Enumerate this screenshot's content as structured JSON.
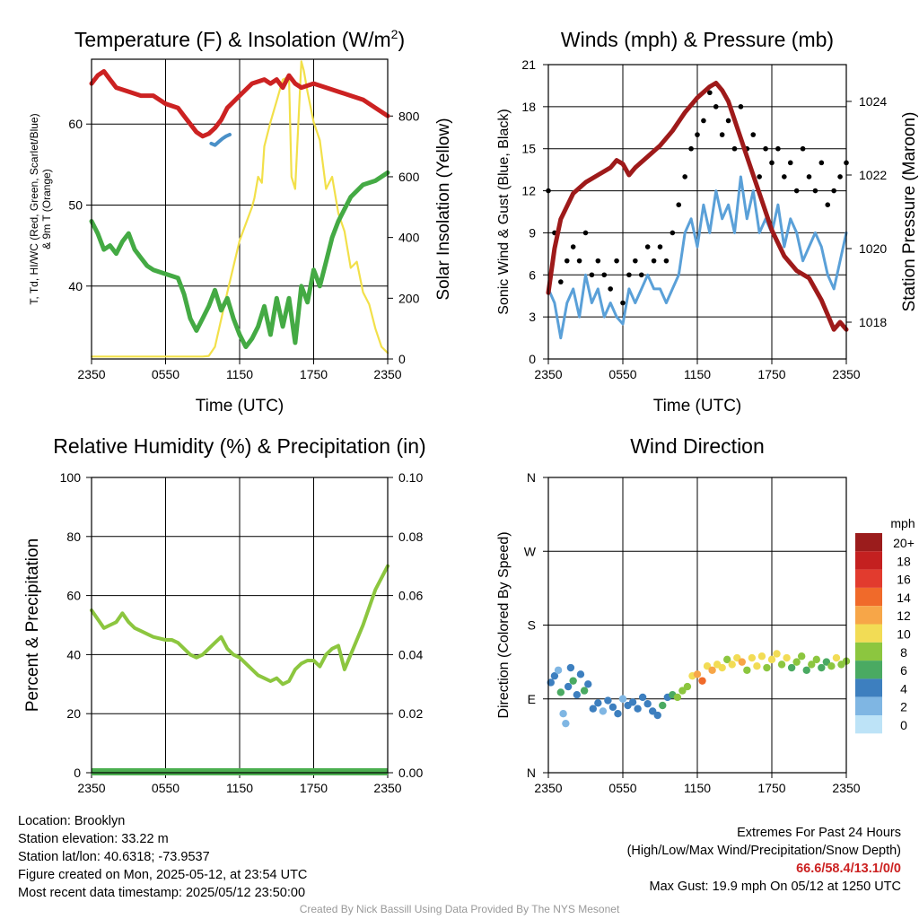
{
  "colors": {
    "temperature": "#cc2222",
    "dewpoint": "#44aa44",
    "windchill": "#4a90c8",
    "insolation": "#f2e04a",
    "wind": "#5aa0d8",
    "gust": "#000000",
    "pressure": "#9e1a1a",
    "rh": "#8cc63f",
    "precip": "#4caf50"
  },
  "footer": {
    "location": "Location: Brooklyn",
    "elevation": "Station elevation: 33.22 m",
    "latlon": "Station lat/lon: 40.6318; -73.9537",
    "created": "Figure created on Mon, 2025-05-12, at 23:54 UTC",
    "recent": "Most recent data timestamp: 2025/05/12 23:50:00",
    "extremes_title": "Extremes For Past 24 Hours",
    "extremes_sub": "(High/Low/Max Wind/Precipitation/Snow Depth)",
    "extremes_values": "66.6/58.4/13.1/0/0",
    "max_gust": "Max Gust: 19.9 mph On 05/12 at 1250 UTC",
    "credit": "Created By Nick Bassill Using Data Provided By The NYS Mesonet"
  },
  "chart_data": [
    {
      "type": "line",
      "title": "Temperature (F) & Insolation (W/m2)",
      "xlabel": "Time (UTC)",
      "ylabel": "2m T, Td, HI/WC (Red, Green, Scarlet/Blue) & 9m T (Orange)",
      "y2label": "Solar Insolation (Yellow)",
      "x_ticks": [
        "2350",
        "0550",
        "1150",
        "1750",
        "2350"
      ],
      "xlim": [
        0,
        24
      ],
      "ylim": [
        31,
        68
      ],
      "y_ticks": [
        40,
        50,
        60
      ],
      "y2lim": [
        0,
        987
      ],
      "y2_ticks": [
        0,
        200,
        400,
        600,
        800
      ],
      "series": [
        {
          "name": "2m T",
          "color_key": "temperature",
          "x": [
            0,
            0.5,
            1,
            1.5,
            2,
            3,
            4,
            5,
            6,
            7,
            7.5,
            8,
            8.5,
            9,
            9.5,
            10,
            10.5,
            11,
            12,
            13,
            14,
            14.5,
            15,
            15.5,
            16,
            16.5,
            17,
            18,
            19,
            20,
            21,
            22,
            23,
            24
          ],
          "values": [
            65.0,
            66.0,
            66.5,
            65.5,
            64.5,
            64.0,
            63.5,
            63.5,
            62.5,
            62.0,
            61.0,
            60.0,
            59.0,
            58.5,
            58.8,
            59.5,
            60.5,
            62.0,
            63.5,
            65.0,
            65.5,
            65.0,
            65.5,
            64.5,
            66.0,
            65.0,
            64.5,
            65.0,
            64.5,
            64.0,
            63.5,
            63.0,
            62.0,
            61.0
          ]
        },
        {
          "name": "2m Td",
          "color_key": "dewpoint",
          "x": [
            0,
            0.5,
            1,
            1.5,
            2,
            2.5,
            3,
            3.5,
            4,
            4.5,
            5,
            6,
            7,
            7.5,
            8,
            8.5,
            9,
            9.5,
            10,
            10.5,
            11,
            11.5,
            12,
            12.5,
            13,
            13.5,
            14,
            14.5,
            15,
            15.5,
            16,
            16.5,
            17,
            17.5,
            18,
            18.5,
            19,
            19.5,
            20,
            21,
            22,
            23,
            24
          ],
          "values": [
            48.0,
            46.5,
            44.5,
            45.0,
            44.0,
            45.5,
            46.5,
            44.5,
            43.5,
            42.5,
            42.0,
            41.5,
            41.0,
            39.0,
            36.0,
            34.5,
            36.0,
            37.5,
            39.5,
            37.0,
            38.5,
            36.0,
            34.0,
            32.5,
            33.5,
            35.0,
            37.5,
            34.0,
            38.5,
            35.0,
            38.5,
            33.0,
            40.0,
            38.0,
            42.0,
            40.0,
            43.0,
            46.0,
            48.0,
            51.0,
            52.5,
            53.0,
            54.0
          ]
        },
        {
          "name": "WC",
          "color_key": "windchill",
          "x": [
            9.7,
            10.0,
            10.3,
            10.6,
            10.9,
            11.2
          ],
          "values": [
            57.6,
            57.4,
            57.8,
            58.2,
            58.5,
            58.7
          ]
        }
      ],
      "insolation": {
        "x": [
          0,
          1,
          2,
          3,
          4,
          5,
          6,
          7,
          8,
          9,
          9.5,
          10,
          11,
          12,
          13,
          13.2,
          13.5,
          13.8,
          14,
          14.5,
          15,
          15.5,
          16,
          16.2,
          16.5,
          17,
          17.2,
          17.5,
          18,
          18.5,
          19,
          19.5,
          20,
          20.5,
          21,
          21.5,
          22,
          22.5,
          23,
          23.5,
          24
        ],
        "values": [
          8,
          8,
          8,
          8,
          8,
          8,
          8,
          8,
          8,
          8,
          10,
          40,
          220,
          390,
          500,
          530,
          600,
          580,
          700,
          780,
          850,
          920,
          930,
          600,
          560,
          980,
          950,
          880,
          780,
          720,
          560,
          600,
          480,
          420,
          300,
          320,
          220,
          180,
          100,
          40,
          20
        ]
      }
    },
    {
      "type": "line",
      "title": "Winds (mph) & Pressure (mb)",
      "xlabel": "Time (UTC)",
      "ylabel": "Sonic Wind & Gust (Blue, Black)",
      "y2label": "Station Pressure (Maroon)",
      "x_ticks": [
        "2350",
        "0550",
        "1150",
        "1750",
        "2350"
      ],
      "xlim": [
        0,
        24
      ],
      "ylim": [
        0,
        21
      ],
      "y_ticks": [
        0,
        3,
        6,
        9,
        12,
        15,
        18,
        21
      ],
      "y2lim": [
        1017.0,
        1025.0
      ],
      "y2_ticks": [
        1018,
        1020,
        1022,
        1024
      ],
      "wind": {
        "x": [
          0,
          0.5,
          1,
          1.5,
          2,
          2.5,
          3,
          3.5,
          4,
          4.5,
          5,
          5.5,
          6,
          6.5,
          7,
          7.5,
          8,
          8.5,
          9,
          9.5,
          10,
          10.5,
          11,
          11.5,
          12,
          12.5,
          13,
          13.5,
          14,
          14.5,
          15,
          15.5,
          16,
          16.5,
          17,
          17.5,
          18,
          18.5,
          19,
          19.5,
          20,
          20.5,
          21,
          21.5,
          22,
          22.5,
          23,
          23.5,
          24
        ],
        "values": [
          5,
          4,
          1.5,
          4,
          5,
          3,
          6,
          4,
          5,
          3,
          4,
          3,
          2.5,
          5,
          4,
          5,
          6,
          5,
          5,
          4,
          5,
          6,
          9,
          10,
          8,
          11,
          9,
          12,
          10,
          11,
          9,
          13,
          10,
          12,
          9,
          10,
          9,
          11,
          8,
          10,
          9,
          7,
          8,
          9,
          8,
          6,
          5,
          7,
          9
        ]
      },
      "gust": {
        "x": [
          0,
          0.5,
          1,
          1.5,
          2,
          2.5,
          3,
          3.5,
          4,
          4.5,
          5,
          5.5,
          6,
          6.5,
          7,
          7.5,
          8,
          8.5,
          9,
          9.5,
          10,
          10.5,
          11,
          11.5,
          12,
          12.5,
          13,
          13.5,
          14,
          14.5,
          15,
          15.5,
          16,
          16.5,
          17,
          17.5,
          18,
          18.5,
          19,
          19.5,
          20,
          20.5,
          21,
          21.5,
          22,
          22.5,
          23,
          23.5,
          24
        ],
        "values": [
          12,
          9,
          5.5,
          7,
          8,
          7,
          9,
          6,
          7,
          6,
          5,
          7,
          4,
          6,
          7,
          6,
          8,
          7,
          8,
          7,
          9,
          11,
          13,
          15,
          16,
          17,
          19,
          18,
          16,
          17,
          15,
          18,
          15,
          16,
          13,
          15,
          14,
          15,
          13,
          14,
          12,
          15,
          13,
          12,
          14,
          11,
          12,
          13,
          14
        ]
      },
      "pressure": {
        "x": [
          0,
          0.5,
          1,
          2,
          3,
          4,
          5,
          5.5,
          6,
          6.5,
          7,
          8,
          9,
          10,
          11,
          12,
          13,
          13.5,
          14,
          14.5,
          15,
          15.5,
          16,
          17,
          18,
          19,
          20,
          21,
          22,
          22.5,
          23,
          23.5,
          24
        ],
        "values": [
          1018.8,
          1020.0,
          1020.8,
          1021.5,
          1021.8,
          1022.0,
          1022.2,
          1022.4,
          1022.3,
          1022.0,
          1022.2,
          1022.5,
          1022.8,
          1023.2,
          1023.7,
          1024.1,
          1024.4,
          1024.5,
          1024.3,
          1024.0,
          1023.5,
          1023.0,
          1022.5,
          1021.5,
          1020.5,
          1019.8,
          1019.4,
          1019.2,
          1018.6,
          1018.2,
          1017.8,
          1018.0,
          1017.8
        ]
      }
    },
    {
      "type": "line",
      "title": "Relative Humidity (%) & Precipitation (in)",
      "xlabel": "",
      "ylabel": "Percent & Precipitation",
      "x_ticks": [
        "2350",
        "0550",
        "1150",
        "1750",
        "2350"
      ],
      "xlim": [
        0,
        24
      ],
      "ylim": [
        0,
        100
      ],
      "y_ticks": [
        0,
        20,
        40,
        60,
        80,
        100
      ],
      "y2lim": [
        0,
        0.1
      ],
      "y2_ticks": [
        "0.00",
        "0.02",
        "0.04",
        "0.06",
        "0.08",
        "0.10"
      ],
      "rh": {
        "x": [
          0,
          0.5,
          1,
          1.5,
          2,
          2.5,
          3,
          3.5,
          4,
          5,
          6,
          6.5,
          7,
          7.5,
          8,
          8.5,
          9,
          9.5,
          10,
          10.5,
          11,
          11.5,
          12,
          12.5,
          13,
          13.5,
          14,
          14.5,
          15,
          15.5,
          16,
          16.5,
          17,
          17.5,
          18,
          18.5,
          19,
          19.5,
          20,
          20.5,
          21,
          22,
          23,
          24
        ],
        "values": [
          55,
          52,
          49,
          50,
          51,
          54,
          51,
          49,
          48,
          46,
          45,
          45,
          44,
          42,
          40,
          39,
          40,
          42,
          44,
          46,
          42,
          40,
          39,
          37,
          35,
          33,
          32,
          31,
          32,
          30,
          31,
          35,
          37,
          38,
          38,
          36,
          40,
          42,
          43,
          35,
          40,
          50,
          62,
          70
        ]
      },
      "precip": {
        "x": [
          0,
          24
        ],
        "values": [
          0,
          0
        ]
      }
    },
    {
      "type": "scatter",
      "title": "Wind Direction",
      "xlabel": "",
      "ylabel": "Direction (Colored By Speed)",
      "x_ticks": [
        "2350",
        "0550",
        "1150",
        "1750",
        "2350"
      ],
      "xlim": [
        0,
        24
      ],
      "ylim": [
        0,
        360
      ],
      "y_ticks": [
        "N",
        "E",
        "S",
        "W",
        "N"
      ],
      "y_tick_values": [
        0,
        90,
        180,
        270,
        360
      ],
      "colorbar": {
        "unit": "mph",
        "labels": [
          "20+",
          "18",
          "16",
          "14",
          "12",
          "10",
          "8",
          "6",
          "4",
          "2",
          "0"
        ],
        "colors": [
          "#9b1c1c",
          "#c42020",
          "#e23b2e",
          "#f06a2a",
          "#f7a648",
          "#f2dc55",
          "#8cc63f",
          "#4aaa62",
          "#3d7fbf",
          "#7fb6e3",
          "#bde3f7"
        ]
      },
      "points": [
        {
          "x": 0.2,
          "y": 110,
          "s": 3
        },
        {
          "x": 0.5,
          "y": 118,
          "s": 4
        },
        {
          "x": 0.8,
          "y": 125,
          "s": 2
        },
        {
          "x": 1.0,
          "y": 98,
          "s": 5
        },
        {
          "x": 1.2,
          "y": 72,
          "s": 2
        },
        {
          "x": 1.4,
          "y": 60,
          "s": 1
        },
        {
          "x": 1.6,
          "y": 105,
          "s": 3
        },
        {
          "x": 1.8,
          "y": 128,
          "s": 4
        },
        {
          "x": 2.0,
          "y": 112,
          "s": 6
        },
        {
          "x": 2.3,
          "y": 95,
          "s": 4
        },
        {
          "x": 2.6,
          "y": 120,
          "s": 3
        },
        {
          "x": 2.9,
          "y": 100,
          "s": 5
        },
        {
          "x": 3.2,
          "y": 108,
          "s": 4
        },
        {
          "x": 3.6,
          "y": 78,
          "s": 3
        },
        {
          "x": 4.0,
          "y": 85,
          "s": 4
        },
        {
          "x": 4.4,
          "y": 75,
          "s": 2
        },
        {
          "x": 4.8,
          "y": 88,
          "s": 3
        },
        {
          "x": 5.2,
          "y": 80,
          "s": 4
        },
        {
          "x": 5.6,
          "y": 72,
          "s": 3
        },
        {
          "x": 6.0,
          "y": 90,
          "s": 2
        },
        {
          "x": 6.4,
          "y": 82,
          "s": 4
        },
        {
          "x": 6.8,
          "y": 86,
          "s": 3
        },
        {
          "x": 7.2,
          "y": 78,
          "s": 4
        },
        {
          "x": 7.6,
          "y": 92,
          "s": 3
        },
        {
          "x": 8.0,
          "y": 84,
          "s": 4
        },
        {
          "x": 8.4,
          "y": 75,
          "s": 3
        },
        {
          "x": 8.8,
          "y": 70,
          "s": 4
        },
        {
          "x": 9.2,
          "y": 82,
          "s": 5
        },
        {
          "x": 9.6,
          "y": 92,
          "s": 4
        },
        {
          "x": 10.0,
          "y": 95,
          "s": 6
        },
        {
          "x": 10.4,
          "y": 92,
          "s": 7
        },
        {
          "x": 10.8,
          "y": 100,
          "s": 8
        },
        {
          "x": 11.2,
          "y": 105,
          "s": 7
        },
        {
          "x": 11.6,
          "y": 118,
          "s": 9
        },
        {
          "x": 12.0,
          "y": 120,
          "s": 12
        },
        {
          "x": 12.4,
          "y": 112,
          "s": 13
        },
        {
          "x": 12.8,
          "y": 130,
          "s": 10
        },
        {
          "x": 13.2,
          "y": 125,
          "s": 11
        },
        {
          "x": 13.6,
          "y": 132,
          "s": 9
        },
        {
          "x": 14.0,
          "y": 128,
          "s": 10
        },
        {
          "x": 14.4,
          "y": 138,
          "s": 8
        },
        {
          "x": 14.8,
          "y": 132,
          "s": 9
        },
        {
          "x": 15.2,
          "y": 140,
          "s": 10
        },
        {
          "x": 15.6,
          "y": 135,
          "s": 11
        },
        {
          "x": 16.0,
          "y": 125,
          "s": 8
        },
        {
          "x": 16.4,
          "y": 140,
          "s": 10
        },
        {
          "x": 16.8,
          "y": 130,
          "s": 9
        },
        {
          "x": 17.2,
          "y": 142,
          "s": 10
        },
        {
          "x": 17.6,
          "y": 128,
          "s": 8
        },
        {
          "x": 18.0,
          "y": 138,
          "s": 9
        },
        {
          "x": 18.4,
          "y": 145,
          "s": 10
        },
        {
          "x": 18.8,
          "y": 132,
          "s": 7
        },
        {
          "x": 19.2,
          "y": 140,
          "s": 9
        },
        {
          "x": 19.6,
          "y": 128,
          "s": 6
        },
        {
          "x": 20.0,
          "y": 135,
          "s": 8
        },
        {
          "x": 20.4,
          "y": 142,
          "s": 7
        },
        {
          "x": 20.8,
          "y": 125,
          "s": 6
        },
        {
          "x": 21.2,
          "y": 132,
          "s": 8
        },
        {
          "x": 21.6,
          "y": 138,
          "s": 7
        },
        {
          "x": 22.0,
          "y": 128,
          "s": 5
        },
        {
          "x": 22.4,
          "y": 135,
          "s": 6
        },
        {
          "x": 22.8,
          "y": 130,
          "s": 7
        },
        {
          "x": 23.2,
          "y": 140,
          "s": 9
        },
        {
          "x": 23.6,
          "y": 132,
          "s": 8
        },
        {
          "x": 24.0,
          "y": 136,
          "s": 7
        }
      ]
    }
  ]
}
